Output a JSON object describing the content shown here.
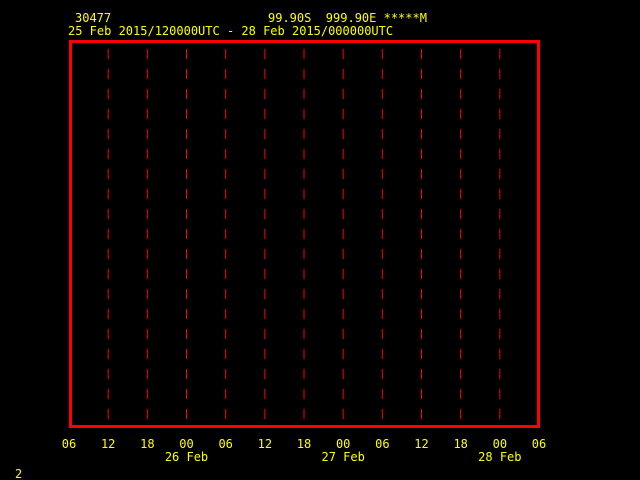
{
  "header": {
    "station_id": "30477",
    "location": "99.90S  999.90E *****M",
    "time_range": "25 Feb 2015/120000UTC - 28 Feb 2015/000000UTC"
  },
  "footer": {
    "page_number": "2"
  },
  "colors": {
    "frame": "#ff0000",
    "gridlines": "#ff0000",
    "text": "#ffff00",
    "background": "#000000"
  },
  "chart_data": {
    "type": "line",
    "title": "",
    "series": [],
    "x_tick_labels": [
      "06",
      "12",
      "18",
      "00",
      "06",
      "12",
      "18",
      "00",
      "06",
      "12",
      "18",
      "00",
      "06"
    ],
    "x_date_labels": [
      {
        "label": "26 Feb",
        "tick_index": 3
      },
      {
        "label": "27 Feb",
        "tick_index": 7
      },
      {
        "label": "28 Feb",
        "tick_index": 11
      }
    ],
    "grid": "vertical dashed at every tick"
  }
}
